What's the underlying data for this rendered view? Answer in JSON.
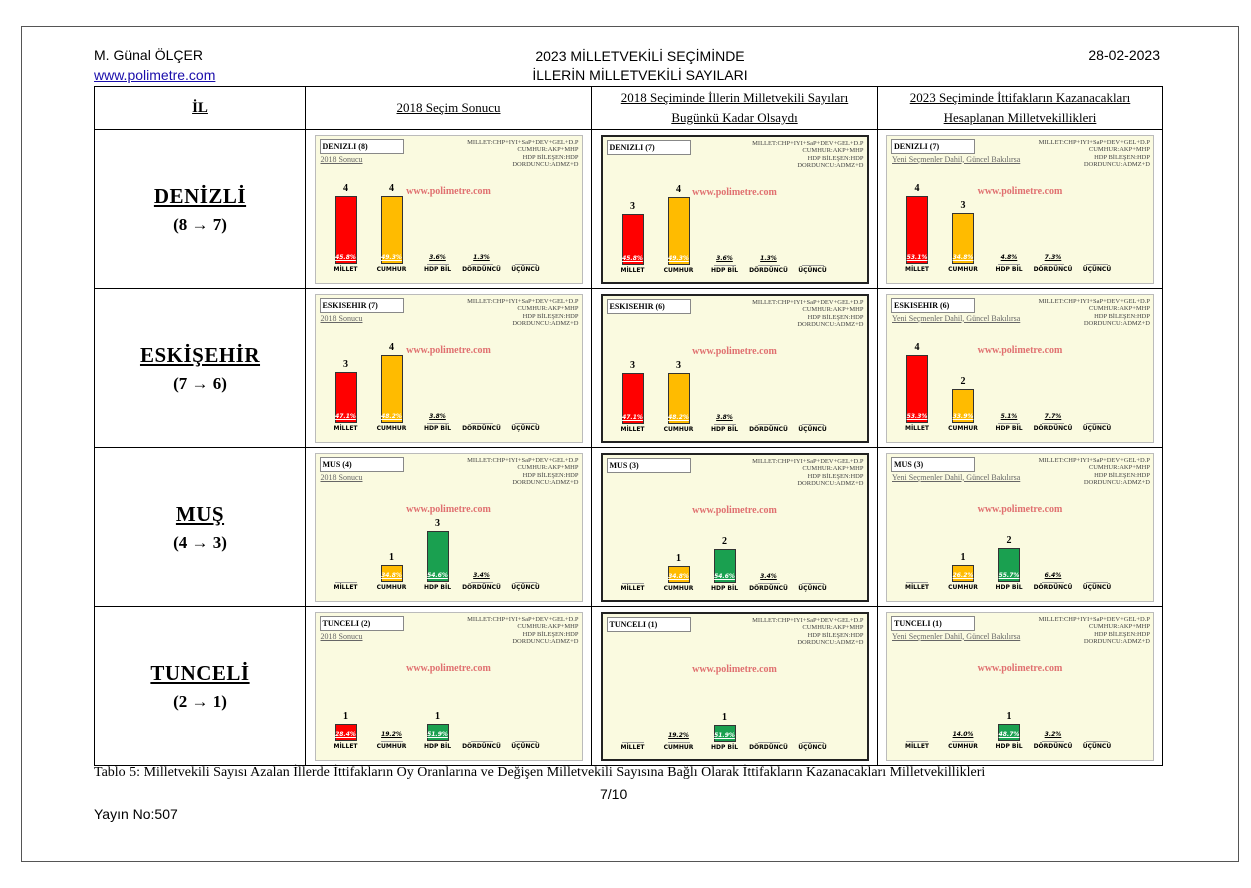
{
  "header": {
    "author": "M. Günal ÖLÇER",
    "url": "www.polimetre.com",
    "title_line1": "2023 MİLLETVEKİLİ SEÇİMİNDE",
    "title_line2": "İLLERİN MİLLETVEKİLİ SAYILARI",
    "date": "28-02-2023"
  },
  "table": {
    "col_headers": {
      "il": "İL",
      "c2018": "2018 Seçim Sonucu",
      "cnow_line1": "2018 Seçiminde İllerin Milletvekili Sayıları",
      "cnow_line2": "Bugünkü Kadar Olsaydı",
      "c2023_line1": "2023 Seçiminde İttifakların Kazanacakları",
      "c2023_line2": "Hesaplanan Milletvekillikleri"
    },
    "rows": [
      {
        "name": "DENİZLİ",
        "change": "(8 → 7)"
      },
      {
        "name": "ESKİŞEHİR",
        "change": "(7 → 6)"
      },
      {
        "name": "MUŞ",
        "change": "(4 → 3)"
      },
      {
        "name": "TUNCELİ",
        "change": "(2 → 1)"
      }
    ]
  },
  "chart_common": {
    "categories": [
      "MİLLET",
      "CUMHUR",
      "HDP BİL",
      "DÖRDÜNCÜ",
      "ÜÇÜNCÜ"
    ],
    "legend_lines": [
      "MILLET:CHP+IYI+SaP+DEV+GEL+D.P",
      "CUMHUR:AKP+MHP",
      "HDP BİLEŞEN:HDP",
      "DORDUNCU:ADMZ+D"
    ],
    "watermark": "www.polimetre.com",
    "sub_2018": "2018 Sonucu",
    "sub_2023": "Yeni Seçmenler Dahil, Güncel Bakılırsa"
  },
  "chart_data": [
    {
      "type": "bar",
      "id": "denizli-2018",
      "title": "DENIZLI (8)",
      "subtitle": "2018 Sonucu",
      "categories": [
        "MİLLET",
        "CUMHUR",
        "HDP BİL",
        "DÖRDÜNCÜ",
        "ÜÇÜNCÜ"
      ],
      "seats": [
        4,
        4,
        0,
        0,
        0
      ],
      "percent_labels": [
        "45.8%",
        "49.3%",
        "3.6%",
        "1.3%",
        ""
      ],
      "colors": [
        "#ff0000",
        "#ffbb00",
        "#1aa050",
        "#cccccc",
        "#cccccc"
      ]
    },
    {
      "type": "bar",
      "id": "denizli-now",
      "title": "DENIZLI (7)",
      "subtitle": "",
      "categories": [
        "MİLLET",
        "CUMHUR",
        "HDP BİL",
        "DÖRDÜNCÜ",
        "ÜÇÜNCÜ"
      ],
      "seats": [
        3,
        4,
        0,
        0,
        0
      ],
      "percent_labels": [
        "45.8%",
        "49.3%",
        "3.6%",
        "1.3%",
        ""
      ],
      "colors": [
        "#ff0000",
        "#ffbb00",
        "#1aa050",
        "#cccccc",
        "#cccccc"
      ]
    },
    {
      "type": "bar",
      "id": "denizli-2023",
      "title": "DENIZLI (7)",
      "subtitle": "Yeni Seçmenler Dahil, Güncel Bakılırsa",
      "categories": [
        "MİLLET",
        "CUMHUR",
        "HDP BİL",
        "DÖRDÜNCÜ",
        "ÜÇÜNCÜ"
      ],
      "seats": [
        4,
        3,
        0,
        0,
        0
      ],
      "percent_labels": [
        "53.1%",
        "34.8%",
        "4.8%",
        "7.3%",
        ""
      ],
      "colors": [
        "#ff0000",
        "#ffbb00",
        "#1aa050",
        "#cccccc",
        "#cccccc"
      ]
    },
    {
      "type": "bar",
      "id": "eskisehir-2018",
      "title": "ESKISEHIR (7)",
      "subtitle": "2018 Sonucu",
      "categories": [
        "MİLLET",
        "CUMHUR",
        "HDP BİL",
        "DÖRDÜNCÜ",
        "ÜÇÜNCÜ"
      ],
      "seats": [
        3,
        4,
        0,
        0,
        0
      ],
      "percent_labels": [
        "47.1%",
        "48.2%",
        "3.8%",
        "",
        ""
      ],
      "colors": [
        "#ff0000",
        "#ffbb00",
        "#1aa050",
        "#cccccc",
        "#cccccc"
      ]
    },
    {
      "type": "bar",
      "id": "eskisehir-now",
      "title": "ESKISEHIR (6)",
      "subtitle": "",
      "categories": [
        "MİLLET",
        "CUMHUR",
        "HDP BİL",
        "DÖRDÜNCÜ",
        "ÜÇÜNCÜ"
      ],
      "seats": [
        3,
        3,
        0,
        0,
        0
      ],
      "percent_labels": [
        "47.1%",
        "48.2%",
        "3.8%",
        "",
        ""
      ],
      "colors": [
        "#ff0000",
        "#ffbb00",
        "#1aa050",
        "#cccccc",
        "#cccccc"
      ]
    },
    {
      "type": "bar",
      "id": "eskisehir-2023",
      "title": "ESKISEHIR (6)",
      "subtitle": "Yeni Seçmenler Dahil, Güncel Bakılırsa",
      "categories": [
        "MİLLET",
        "CUMHUR",
        "HDP BİL",
        "DÖRDÜNCÜ",
        "ÜÇÜNCÜ"
      ],
      "seats": [
        4,
        2,
        0,
        0,
        0
      ],
      "percent_labels": [
        "53.3%",
        "33.9%",
        "5.1%",
        "7.7%",
        ""
      ],
      "colors": [
        "#ff0000",
        "#ffbb00",
        "#1aa050",
        "#cccccc",
        "#cccccc"
      ]
    },
    {
      "type": "bar",
      "id": "mus-2018",
      "title": "MUS (4)",
      "subtitle": "2018 Sonucu",
      "categories": [
        "MİLLET",
        "CUMHUR",
        "HDP BİL",
        "DÖRDÜNCÜ",
        "ÜÇÜNCÜ"
      ],
      "seats": [
        0,
        1,
        3,
        0,
        0
      ],
      "percent_labels": [
        "",
        "34.8%",
        "54.6%",
        "3.4%",
        ""
      ],
      "colors": [
        "#ff0000",
        "#ffbb00",
        "#1aa050",
        "#cccccc",
        "#cccccc"
      ]
    },
    {
      "type": "bar",
      "id": "mus-now",
      "title": "MUS (3)",
      "subtitle": "",
      "categories": [
        "MİLLET",
        "CUMHUR",
        "HDP BİL",
        "DÖRDÜNCÜ",
        "ÜÇÜNCÜ"
      ],
      "seats": [
        0,
        1,
        2,
        0,
        0
      ],
      "percent_labels": [
        "",
        "34.8%",
        "54.6%",
        "3.4%",
        ""
      ],
      "colors": [
        "#ff0000",
        "#ffbb00",
        "#1aa050",
        "#cccccc",
        "#cccccc"
      ]
    },
    {
      "type": "bar",
      "id": "mus-2023",
      "title": "MUS (3)",
      "subtitle": "Yeni Seçmenler Dahil, Güncel Bakılırsa",
      "categories": [
        "MİLLET",
        "CUMHUR",
        "HDP BİL",
        "DÖRDÜNCÜ",
        "ÜÇÜNCÜ"
      ],
      "seats": [
        0,
        1,
        2,
        0,
        0
      ],
      "percent_labels": [
        "",
        "26.2%",
        "55.7%",
        "6.4%",
        ""
      ],
      "colors": [
        "#ff0000",
        "#ffbb00",
        "#1aa050",
        "#cccccc",
        "#cccccc"
      ]
    },
    {
      "type": "bar",
      "id": "tunceli-2018",
      "title": "TUNCELI (2)",
      "subtitle": "2018 Sonucu",
      "categories": [
        "MİLLET",
        "CUMHUR",
        "HDP BİL",
        "DÖRDÜNCÜ",
        "ÜÇÜNCÜ"
      ],
      "seats": [
        1,
        0,
        1,
        0,
        0
      ],
      "percent_labels": [
        "28.4%",
        "19.2%",
        "51.9%",
        "",
        ""
      ],
      "colors": [
        "#ff0000",
        "#ffbb00",
        "#1aa050",
        "#cccccc",
        "#cccccc"
      ]
    },
    {
      "type": "bar",
      "id": "tunceli-now",
      "title": "TUNCELI (1)",
      "subtitle": "",
      "categories": [
        "MİLLET",
        "CUMHUR",
        "HDP BİL",
        "DÖRDÜNCÜ",
        "ÜÇÜNCÜ"
      ],
      "seats": [
        0,
        0,
        1,
        0,
        0
      ],
      "percent_labels": [
        "",
        "19.2%",
        "51.9%",
        "",
        ""
      ],
      "colors": [
        "#ff0000",
        "#ffbb00",
        "#1aa050",
        "#cccccc",
        "#cccccc"
      ]
    },
    {
      "type": "bar",
      "id": "tunceli-2023",
      "title": "TUNCELI (1)",
      "subtitle": "Yeni Seçmenler Dahil, Güncel Bakılırsa",
      "categories": [
        "MİLLET",
        "CUMHUR",
        "HDP BİL",
        "DÖRDÜNCÜ",
        "ÜÇÜNCÜ"
      ],
      "seats": [
        0,
        0,
        1,
        0,
        0
      ],
      "percent_labels": [
        "",
        "14.0%",
        "48.7%",
        "3.2%",
        ""
      ],
      "colors": [
        "#ff0000",
        "#ffbb00",
        "#1aa050",
        "#cccccc",
        "#cccccc"
      ]
    }
  ],
  "footer": {
    "caption": "Tablo  5: Milletvekili Sayısı Azalan İllerde İttifakların Oy Oranlarına ve Değişen Milletvekili Sayısına Bağlı Olarak İttifakların Kazanacakları Milletvekillikleri",
    "page": "7/10",
    "yayin": "Yayın No:507"
  }
}
